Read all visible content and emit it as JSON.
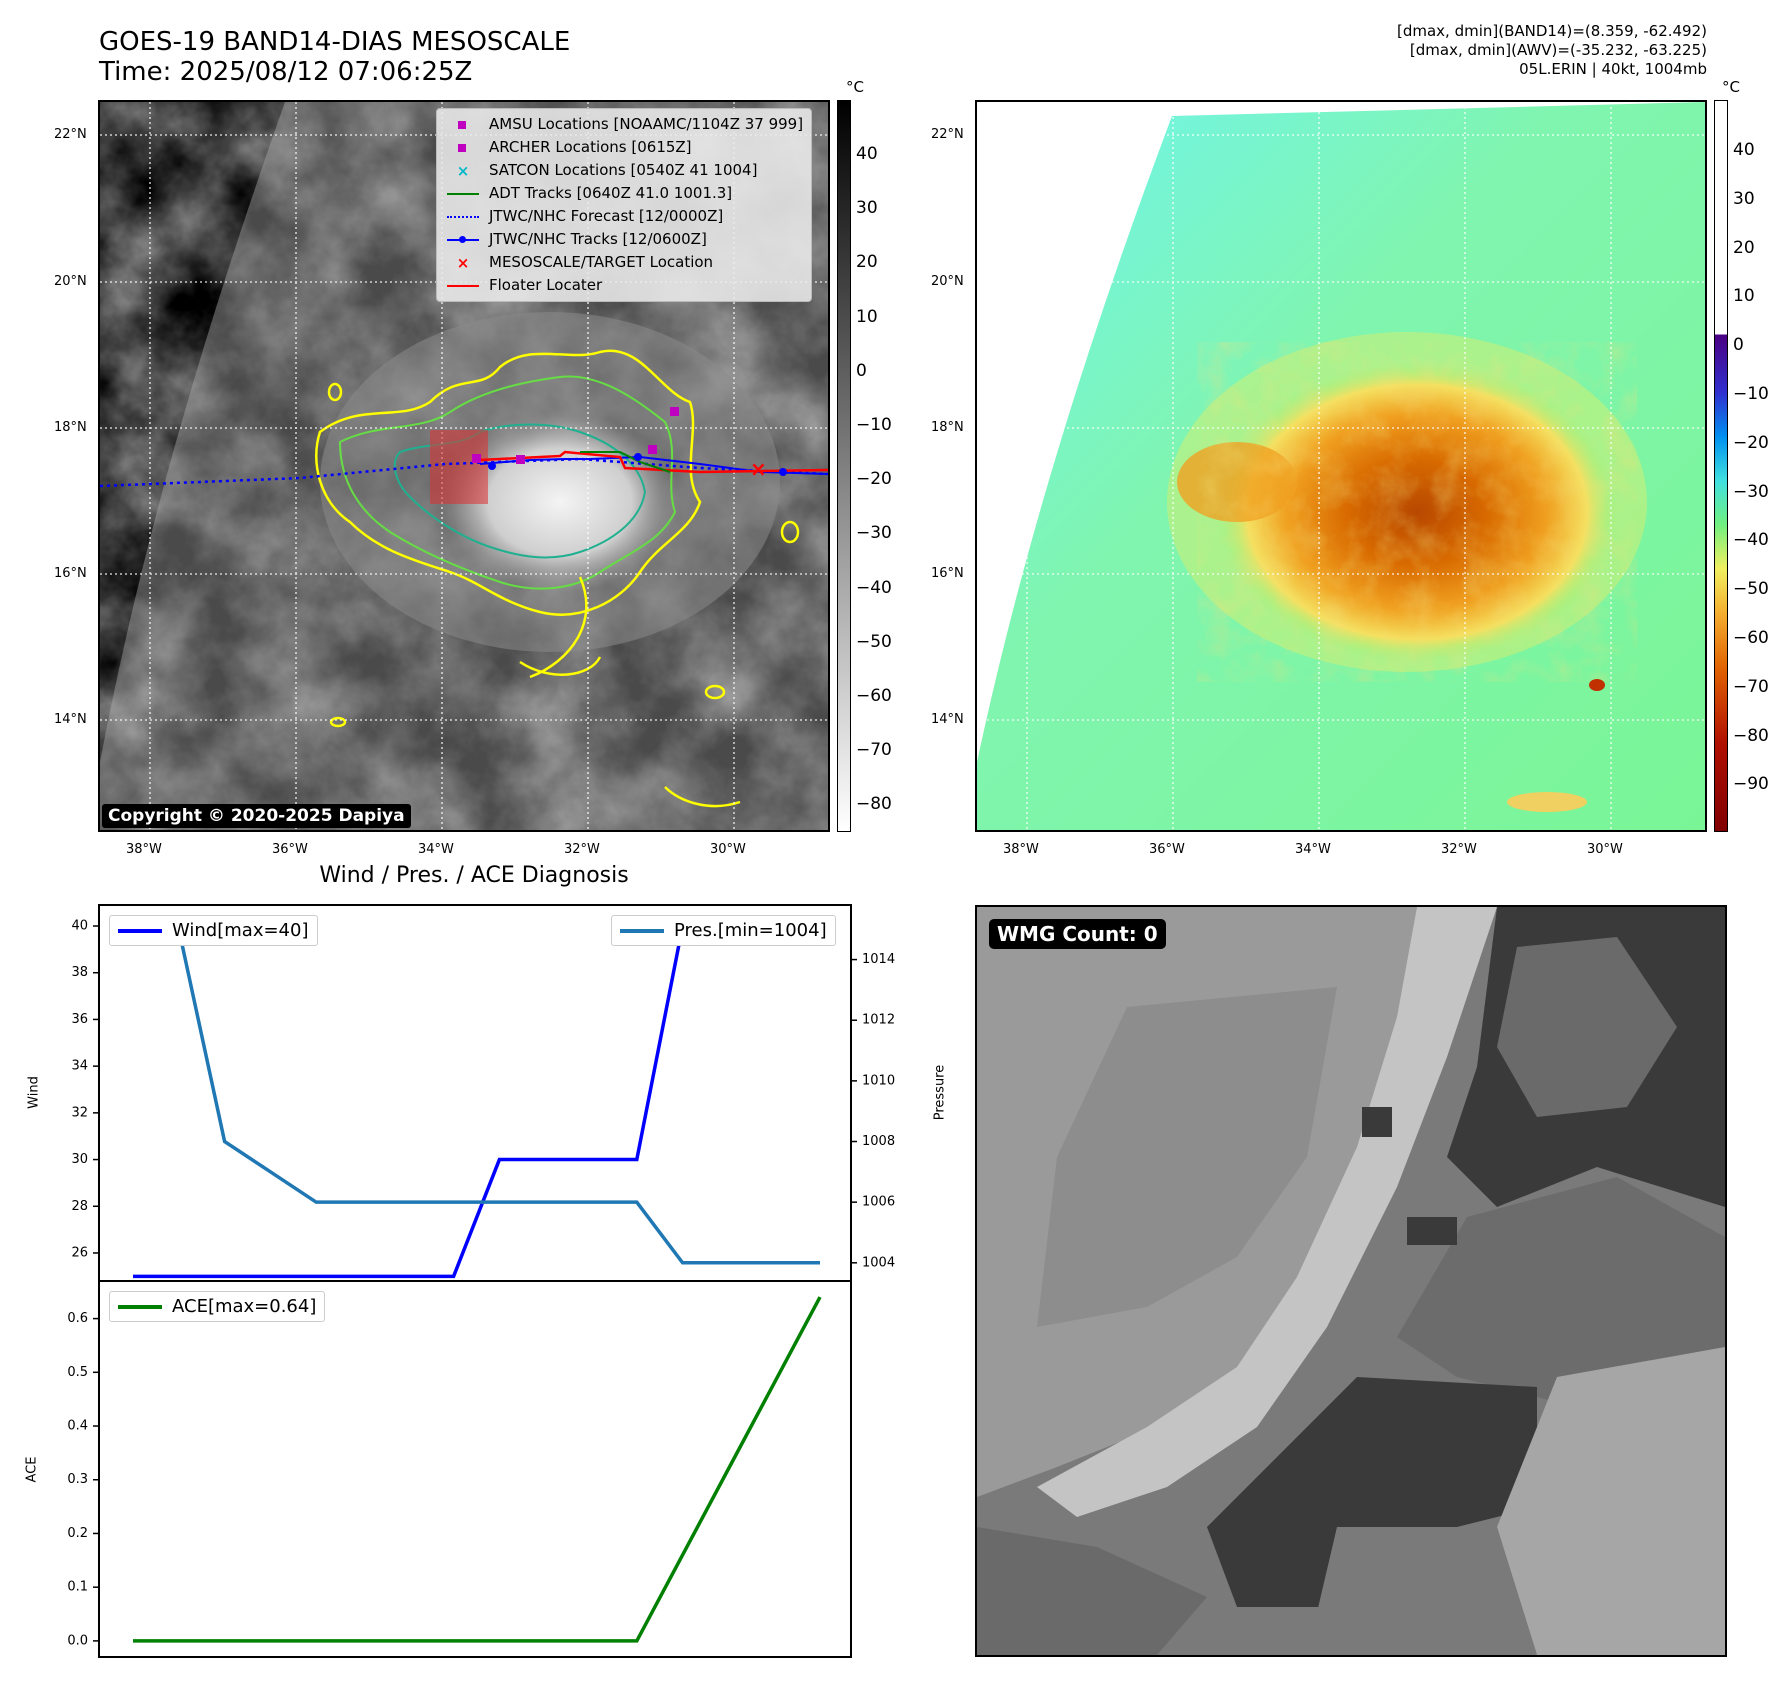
{
  "header": {
    "title_line1": "GOES-19 BAND14-DIAS MESOSCALE",
    "title_line2": "Time: 2025/08/12 07:06:25Z",
    "info_line1": "[dmax, dmin](BAND14)=(8.359, -62.492)",
    "info_line2": "[dmax, dmin](AWV)=(-35.232, -63.225)",
    "info_line3": "05L.ERIN | 40kt, 1004mb"
  },
  "map_axes": {
    "lat_labels": [
      "22°N",
      "20°N",
      "18°N",
      "16°N",
      "14°N"
    ],
    "lon_labels": [
      "38°W",
      "36°W",
      "34°W",
      "32°W",
      "30°W"
    ],
    "cb_unit": "°C"
  },
  "ir_colorbar": {
    "ticks": [
      "40",
      "30",
      "20",
      "10",
      "0",
      "−10",
      "−20",
      "−30",
      "−40",
      "−50",
      "−60",
      "−70",
      "−80"
    ],
    "colors": [
      "#000000",
      "#ffffff"
    ]
  },
  "wv_colorbar": {
    "ticks": [
      "40",
      "30",
      "20",
      "10",
      "0",
      "−10",
      "−20",
      "−30",
      "−40",
      "−50",
      "−60",
      "−70",
      "−80",
      "−90"
    ]
  },
  "legend": {
    "items": [
      {
        "label": "AMSU Locations [NOAAMC/1104Z 37 999]",
        "color": "#c000c0",
        "marker": "square"
      },
      {
        "label": "ARCHER Locations [0615Z]",
        "color": "#c000c0",
        "marker": "square"
      },
      {
        "label": "SATCON Locations [0540Z 41 1004]",
        "color": "#00b8c8",
        "marker": "x"
      },
      {
        "label": "ADT Tracks [0640Z 41.0 1001.3]",
        "color": "#008000",
        "marker": "line"
      },
      {
        "label": "JTWC/NHC Forecast [12/0000Z]",
        "color": "#0000ff",
        "marker": "dotted"
      },
      {
        "label": "JTWC/NHC Tracks [12/0600Z]",
        "color": "#0000ff",
        "marker": "line-dot"
      },
      {
        "label": "MESOSCALE/TARGET Location",
        "color": "#ff0000",
        "marker": "x"
      },
      {
        "label": "Floater Locater",
        "color": "#ff0000",
        "marker": "line"
      }
    ]
  },
  "copyright": "Copyright © 2020-2025 Dapiya",
  "wmg": {
    "label": "WMG Count: 0"
  },
  "diag": {
    "title": "Wind / Pres. / ACE Diagnosis",
    "wind_legend": "Wind[max=40]",
    "pres_legend": "Pres.[min=1004]",
    "ace_legend": "ACE[max=0.64]",
    "wind_ylabel": "Wind",
    "pres_ylabel": "Pressure",
    "ace_ylabel": "ACE"
  },
  "chart_data": [
    {
      "type": "line",
      "title": "Wind / Pres. / ACE Diagnosis",
      "x": [
        0,
        1,
        2,
        3,
        4,
        5,
        6,
        7,
        8,
        9,
        10,
        11,
        12,
        13,
        14,
        15
      ],
      "series": [
        {
          "name": "Wind[max=40]",
          "axis": "left",
          "color": "#0000ff",
          "values": [
            25,
            25,
            25,
            25,
            25,
            25,
            25,
            25,
            30,
            30,
            30,
            30,
            40,
            40,
            40,
            40
          ]
        },
        {
          "name": "Pres.[min=1004]",
          "axis": "right",
          "color": "#1f77b4",
          "values": [
            1015,
            1015,
            1008,
            1007,
            1006,
            1006,
            1006,
            1006,
            1006,
            1006,
            1006,
            1006,
            1004,
            1004,
            1004,
            1004
          ]
        }
      ],
      "ylabel": "Wind",
      "ylabel_right": "Pressure",
      "ylim": [
        24.8,
        40.9
      ],
      "ylim_right": [
        1003.4,
        1015.8
      ],
      "yticks": [
        26,
        28,
        30,
        32,
        34,
        36,
        38,
        40
      ],
      "yticks_right": [
        1004,
        1006,
        1008,
        1010,
        1012,
        1014
      ],
      "legend": "top-left / top-right"
    },
    {
      "type": "line",
      "x": [
        0,
        1,
        2,
        3,
        4,
        5,
        6,
        7,
        8,
        9,
        10,
        11,
        12,
        13,
        14,
        15
      ],
      "series": [
        {
          "name": "ACE[max=0.64]",
          "color": "#008000",
          "values": [
            0,
            0,
            0,
            0,
            0,
            0,
            0,
            0,
            0,
            0,
            0,
            0,
            0.16,
            0.32,
            0.48,
            0.64
          ]
        }
      ],
      "ylabel": "ACE",
      "ylim": [
        -0.03,
        0.67
      ],
      "yticks": [
        0.0,
        0.1,
        0.2,
        0.3,
        0.4,
        0.5,
        0.6
      ],
      "legend": "top-left"
    }
  ]
}
